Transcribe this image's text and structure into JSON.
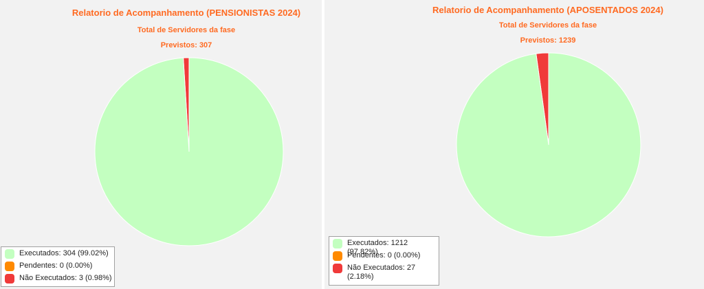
{
  "chart_data": [
    {
      "type": "pie",
      "title": "Relatorio de Acompanhamento (PENSIONISTAS 2024)",
      "subtitle": "Total de Servidores da fase",
      "subtitle2": "Previstos: 307",
      "total": 307,
      "slices": [
        {
          "name": "Executados",
          "value": 304,
          "percent": 99.02,
          "color": "#c3ffc0"
        },
        {
          "name": "Pendentes",
          "value": 0,
          "percent": 0.0,
          "color": "#ff8a00"
        },
        {
          "name": "Não Executados",
          "value": 3,
          "percent": 0.98,
          "color": "#f03a3a"
        }
      ],
      "legend": {
        "placement": "bottom-left",
        "items": [
          "Executados: 304 (99.02%)",
          "Pendentes: 0 (0.00%)",
          "Não Executados: 3 (0.98%)"
        ]
      }
    },
    {
      "type": "pie",
      "title": "Relatorio de Acompanhamento (APOSENTADOS 2024)",
      "subtitle": "Total de Servidores da fase",
      "subtitle2": "Previstos: 1239",
      "total": 1239,
      "slices": [
        {
          "name": "Executados",
          "value": 1212,
          "percent": 97.82,
          "color": "#c3ffc0"
        },
        {
          "name": "Pendentes",
          "value": 0,
          "percent": 0.0,
          "color": "#ff8a00"
        },
        {
          "name": "Não Executados",
          "value": 27,
          "percent": 2.18,
          "color": "#f03a3a"
        }
      ],
      "legend": {
        "placement": "bottom-left",
        "items": [
          "Executados: 1212 (97.82%)",
          "Pendentes: 0 (0.00%)",
          "Não Executados: 27",
          "(2.18%)"
        ]
      }
    }
  ]
}
